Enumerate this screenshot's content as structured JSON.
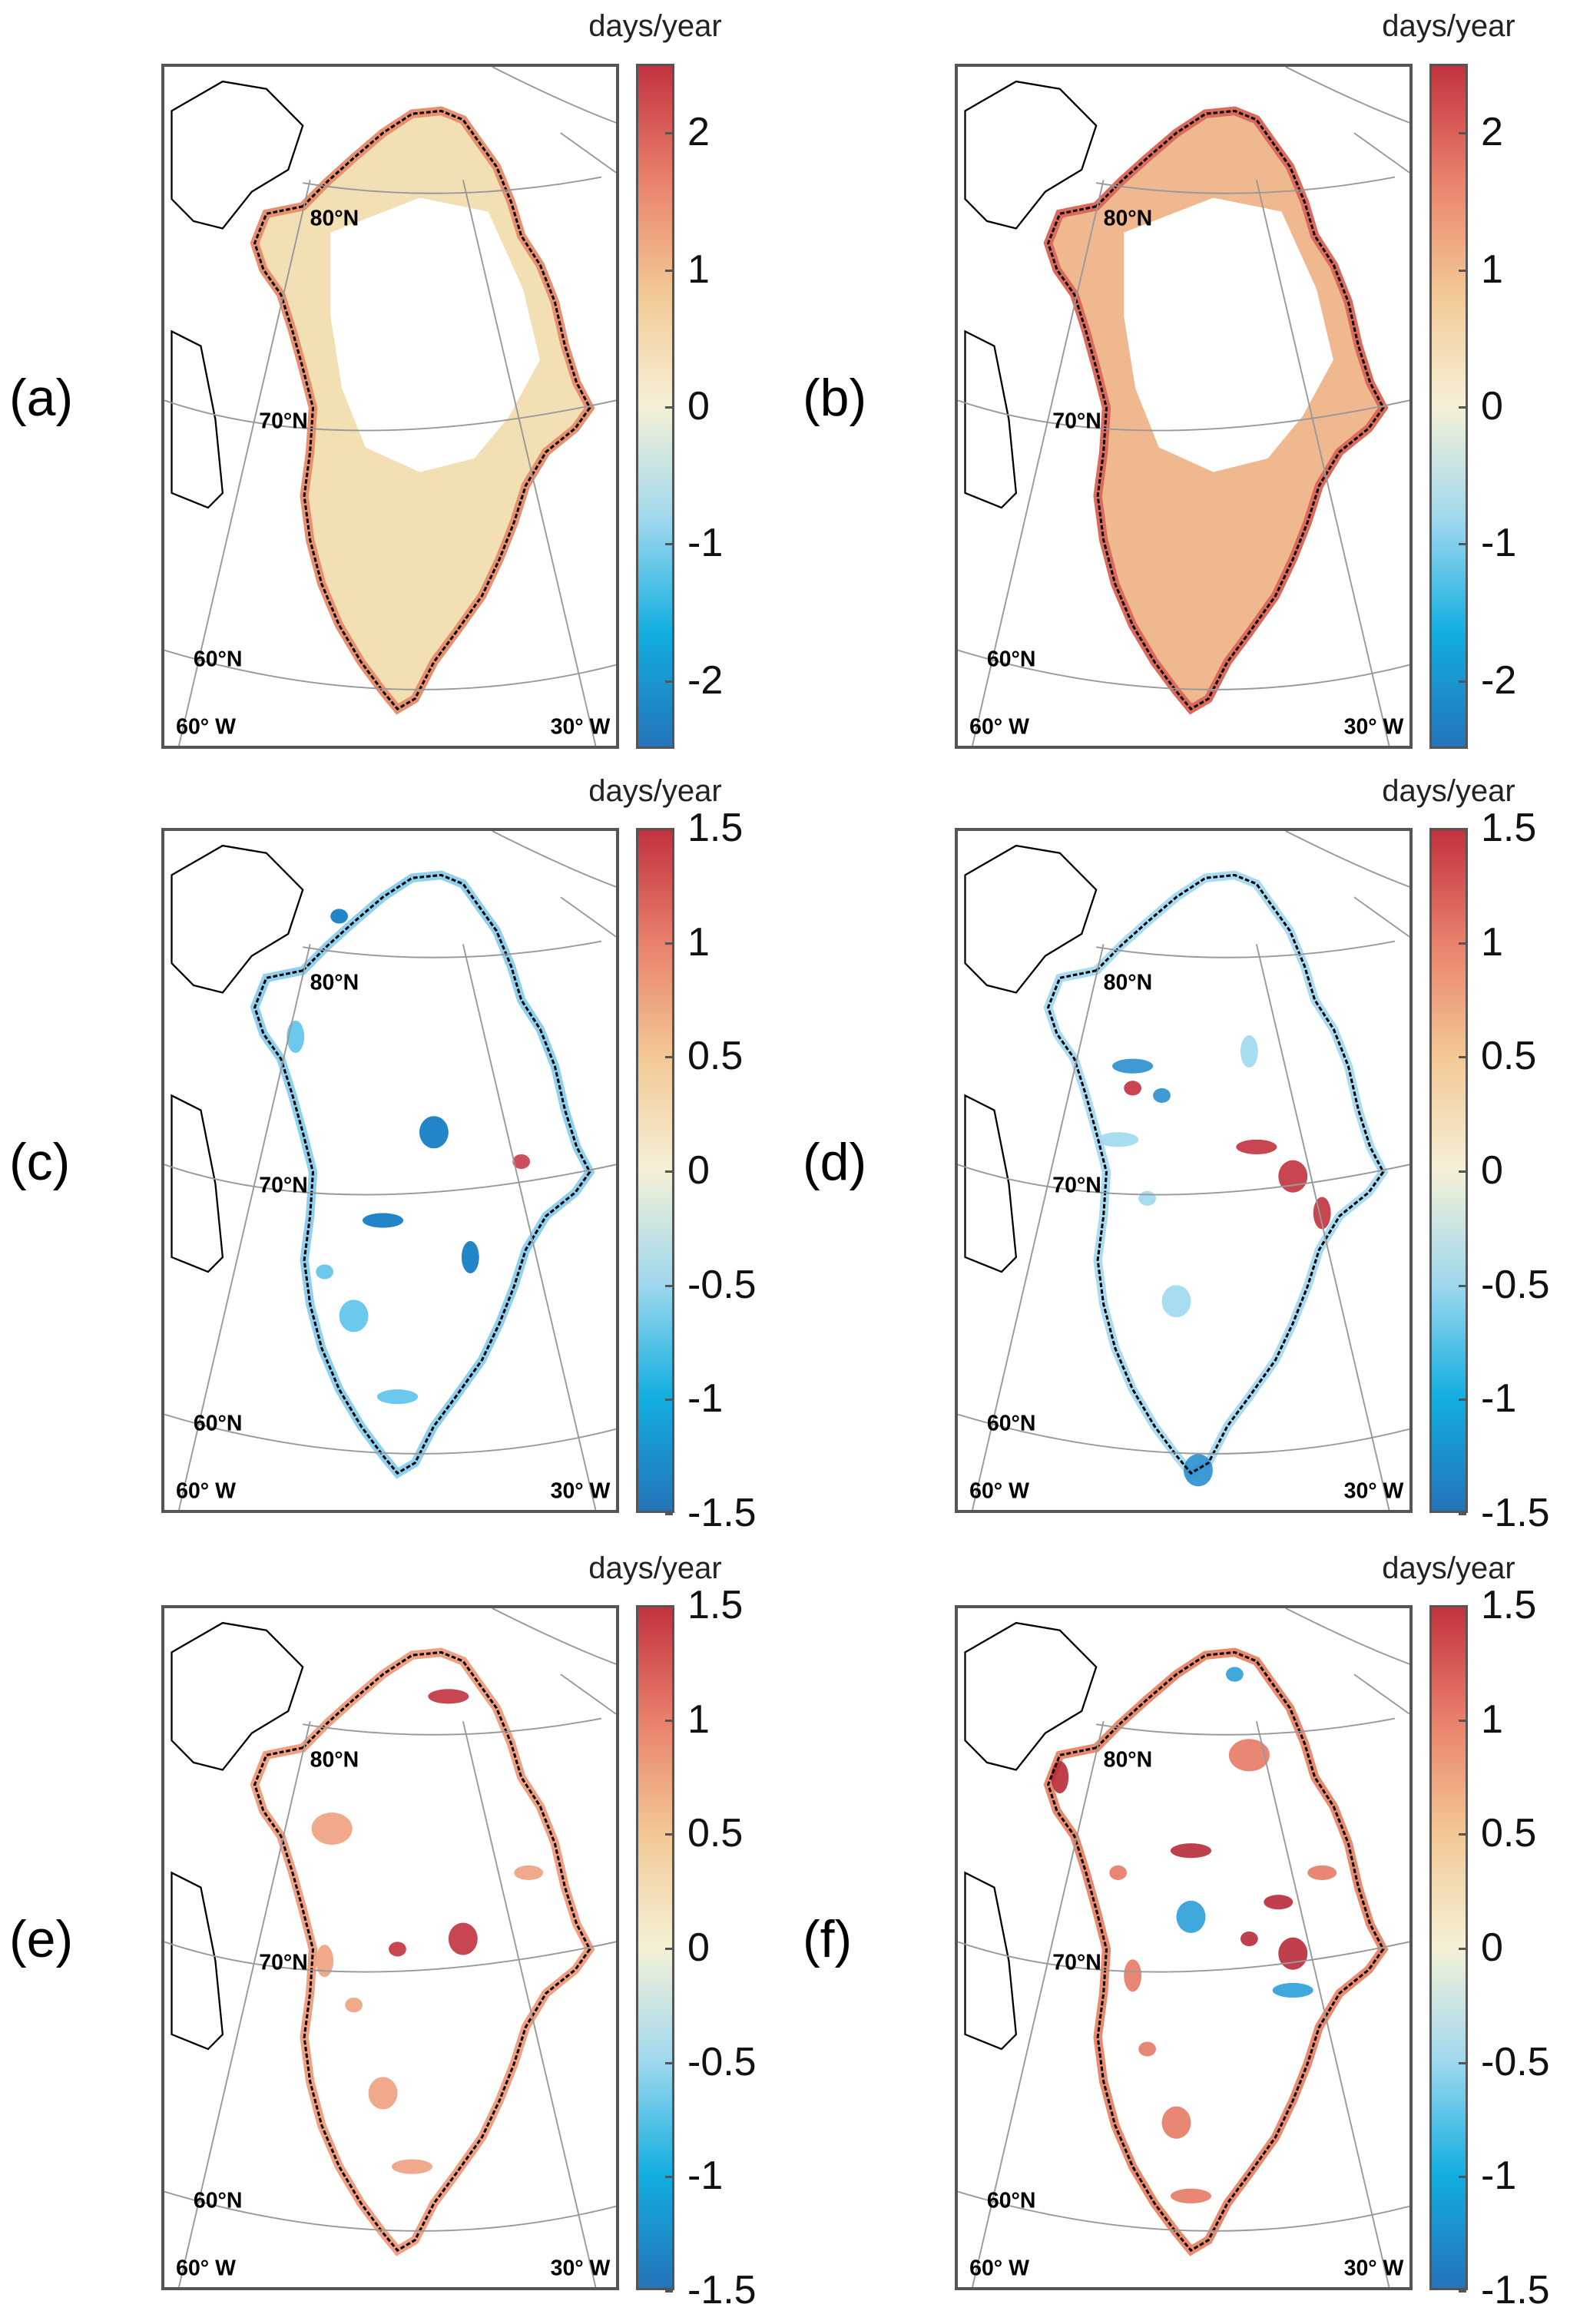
{
  "figure": {
    "unit": "days/year",
    "panels": [
      {
        "label": "(a)",
        "scale": "wide",
        "base_color": "#f3dfb4",
        "edge_color": "#e8906e",
        "style": "trend_wide"
      },
      {
        "label": "(b)",
        "scale": "wide",
        "base_color": "#efb88f",
        "edge_color": "#dc6a5a",
        "style": "trend_wide_strong"
      },
      {
        "label": "(c)",
        "scale": "narrow",
        "base_color": "#ffffff",
        "edge_color": "#8fd0ee",
        "style": "sparse_negative"
      },
      {
        "label": "(d)",
        "scale": "narrow",
        "base_color": "#ffffff",
        "edge_color": "#a9dcf2",
        "style": "mixed"
      },
      {
        "label": "(e)",
        "scale": "narrow",
        "base_color": "#ffffff",
        "edge_color": "#f0a080",
        "style": "sparse_positive"
      },
      {
        "label": "(f)",
        "scale": "narrow",
        "base_color": "#ffffff",
        "edge_color": "#ea8a6c",
        "style": "strong_positive"
      }
    ],
    "colorbars": {
      "wide": {
        "range": [
          -2.5,
          2.5
        ],
        "ticks": [
          "2",
          "1",
          "0",
          "-1",
          "-2"
        ],
        "tick_values": [
          2,
          1,
          0,
          -1,
          -2
        ]
      },
      "narrow": {
        "range": [
          -1.5,
          1.5
        ],
        "ticks": [
          "1.5",
          "1",
          "0.5",
          "0",
          "-0.5",
          "-1",
          "-1.5"
        ],
        "tick_values": [
          1.5,
          1,
          0.5,
          0,
          -0.5,
          -1,
          -1.5
        ]
      }
    },
    "colormap": [
      "#2474b8",
      "#12aee0",
      "#9fd8ee",
      "#f5f1d6",
      "#f3c895",
      "#e9816c",
      "#c2323f"
    ],
    "graticule_labels": {
      "lat80": "80°N",
      "lat70": "70°N",
      "lat60": "60°N",
      "lon60": "60° W",
      "lon30": "30° W"
    }
  }
}
